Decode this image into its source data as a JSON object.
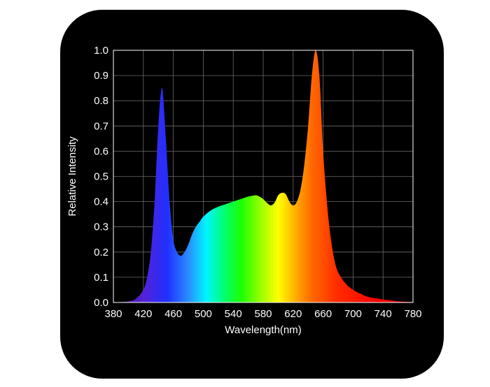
{
  "chart_data": {
    "type": "area",
    "title": "",
    "xlabel": "Wavelength(nm)",
    "ylabel": "Relative Intensity",
    "xlim": [
      380,
      780
    ],
    "ylim": [
      0,
      1.0
    ],
    "grid": true,
    "legend": "none",
    "x_ticks": [
      "380",
      "420",
      "460",
      "500",
      "540",
      "580",
      "620",
      "660",
      "700",
      "740",
      "780"
    ],
    "y_ticks": [
      "0.0",
      "0.1",
      "0.2",
      "0.3",
      "0.4",
      "0.5",
      "0.6",
      "0.7",
      "0.8",
      "0.9",
      "1.0"
    ],
    "series": [
      {
        "x": [
          380,
          400,
          410,
          420,
          425,
          430,
          435,
          440,
          445,
          450,
          455,
          460,
          465,
          470,
          475,
          480,
          485,
          490,
          495,
          500,
          510,
          520,
          530,
          540,
          550,
          560,
          570,
          575,
          580,
          585,
          590,
          595,
          600,
          605,
          610,
          615,
          620,
          625,
          630,
          635,
          640,
          645,
          650,
          655,
          660,
          665,
          670,
          675,
          680,
          690,
          700,
          710,
          720,
          740,
          760,
          780
        ],
        "y": [
          0.0,
          0.005,
          0.015,
          0.05,
          0.1,
          0.2,
          0.4,
          0.7,
          0.85,
          0.65,
          0.4,
          0.25,
          0.2,
          0.185,
          0.2,
          0.23,
          0.27,
          0.3,
          0.32,
          0.34,
          0.365,
          0.38,
          0.39,
          0.4,
          0.41,
          0.42,
          0.425,
          0.42,
          0.41,
          0.395,
          0.385,
          0.395,
          0.425,
          0.435,
          0.43,
          0.4,
          0.385,
          0.4,
          0.45,
          0.55,
          0.7,
          0.9,
          1.0,
          0.9,
          0.6,
          0.4,
          0.26,
          0.17,
          0.12,
          0.075,
          0.05,
          0.035,
          0.022,
          0.012,
          0.005,
          0.002
        ]
      }
    ]
  }
}
